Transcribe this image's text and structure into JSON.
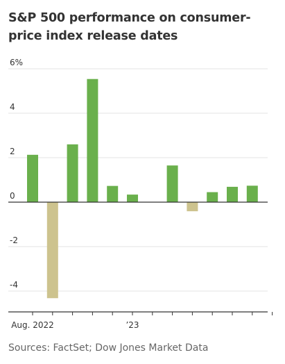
{
  "header": {
    "title": "S&P 500 performance on consumer-price index release dates"
  },
  "footer": {
    "source": "Sources: FactSet; Dow Jones Market Data"
  },
  "colors": {
    "positive": "#6ab04c",
    "negative": "#cdc38e",
    "grid": "#e3e3e3",
    "baseline": "#333333"
  },
  "chart_data": {
    "type": "bar",
    "title": "S&P 500 performance on consumer-price index release dates",
    "xlabel": "",
    "ylabel": "",
    "y_unit": "%",
    "ylim": [
      -5,
      6
    ],
    "yticks": [
      {
        "value": 6,
        "label": "6%"
      },
      {
        "value": 4,
        "label": "4"
      },
      {
        "value": 2,
        "label": "2"
      },
      {
        "value": 0,
        "label": "0"
      },
      {
        "value": -2,
        "label": "-2"
      },
      {
        "value": -4,
        "label": "-4"
      }
    ],
    "x_axis_labels": [
      {
        "index": 0,
        "label": "Aug. 2022"
      },
      {
        "index": 5,
        "label": "’23"
      }
    ],
    "categories": [
      "2022-08",
      "2022-09",
      "2022-10",
      "2022-11",
      "2022-12",
      "2023-01",
      "2023-02",
      "2023-03",
      "2023-04",
      "2023-05",
      "2023-06",
      "2023-07",
      "2023-08"
    ],
    "values": [
      2.13,
      -4.32,
      2.6,
      5.54,
      0.73,
      0.34,
      null,
      1.65,
      -0.41,
      0.45,
      0.69,
      0.74,
      null
    ],
    "grid": true,
    "legend": "none"
  }
}
